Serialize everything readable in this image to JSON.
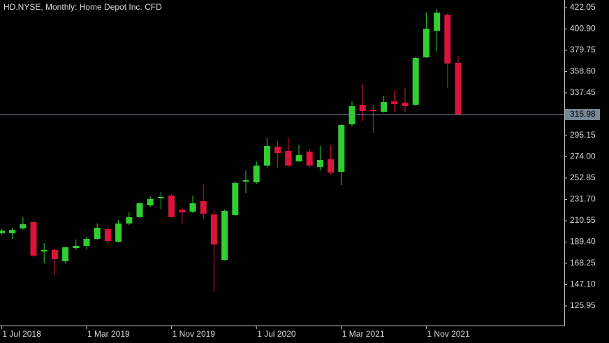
{
  "chart_data": {
    "type": "candlestick",
    "title": "HD.NYSE, Monthly:  Home Depot Inc. CFD",
    "categories": [
      "1 Jul 2018",
      null,
      null,
      null,
      null,
      null,
      null,
      null,
      "1 Mar 2019",
      null,
      null,
      null,
      null,
      null,
      null,
      null,
      "1 Nov 2019",
      null,
      null,
      null,
      null,
      null,
      null,
      null,
      "1 Jul 2020",
      null,
      null,
      null,
      null,
      null,
      null,
      null,
      "1 Mar 2021",
      null,
      null,
      null,
      null,
      null,
      null,
      null,
      "1 Nov 2021",
      null,
      null,
      null
    ],
    "open": [
      198.1,
      198.1,
      202.9,
      209.2,
      180.1,
      181.5,
      170.3,
      183.5,
      185.6,
      192.5,
      202.2,
      189.7,
      207.8,
      214.1,
      225.8,
      232.8,
      235.5,
      221.6,
      219.6,
      230.0,
      216.8,
      171.7,
      216.1,
      249.4,
      248.7,
      265.3,
      284.1,
      279.9,
      269.5,
      279.2,
      264.0,
      271.6,
      259.1,
      306.3,
      325.7,
      320.8,
      318.7,
      329.1,
      327.8,
      325.7,
      372.8,
      399.2,
      415.1,
      367.3
    ],
    "high": [
      202.2,
      203.6,
      214.1,
      210.6,
      188.4,
      182.8,
      184.9,
      191.8,
      194.6,
      207.8,
      204.3,
      211.3,
      219.6,
      229.3,
      234.8,
      239.0,
      236.9,
      224.4,
      235.5,
      246.6,
      221.6,
      221.6,
      250.1,
      259.8,
      269.5,
      293.1,
      289.6,
      293.1,
      286.2,
      282.0,
      284.8,
      285.5,
      307.0,
      329.2,
      345.8,
      325.7,
      334.7,
      340.2,
      342.3,
      373.5,
      417.2,
      420.7,
      416.5,
      374.2
    ],
    "low": [
      196.7,
      192.5,
      201.5,
      174.5,
      168.3,
      157.2,
      168.3,
      181.5,
      182.2,
      191.8,
      187.0,
      189.0,
      206.4,
      213.4,
      224.4,
      222.3,
      214.1,
      207.8,
      218.2,
      212.0,
      139.8,
      171.0,
      215.4,
      238.3,
      247.3,
      263.3,
      263.3,
      264.0,
      268.8,
      263.3,
      260.5,
      256.3,
      245.9,
      304.2,
      309.1,
      297.9,
      318.1,
      318.7,
      318.1,
      324.3,
      372.1,
      379.1,
      342.3,
      315.98
    ],
    "close": [
      200.8,
      201.5,
      207.1,
      175.9,
      181.5,
      172.4,
      184.2,
      185.6,
      192.5,
      203.6,
      190.4,
      207.8,
      214.1,
      227.9,
      232.1,
      234.1,
      214.1,
      218.9,
      227.9,
      217.5,
      187.0,
      220.3,
      248.0,
      250.8,
      265.3,
      284.8,
      277.8,
      265.3,
      275.7,
      265.3,
      270.9,
      258.4,
      305.6,
      324.3,
      319.4,
      319.4,
      328.4,
      326.4,
      324.3,
      372.1,
      401.2,
      417.2,
      366.6,
      315.98
    ],
    "up_color": "#32cd32",
    "down_color": "#dc143c",
    "current_price": 315.98,
    "price_line_color": "#778899",
    "ylim": [
      106.5,
      429.7
    ],
    "yticks": [
      {
        "value": 125.95,
        "label": "125.95"
      },
      {
        "value": 147.1,
        "label": "147.10"
      },
      168.25,
      {
        "value": 189.4,
        "label": "189.40"
      },
      210.55,
      {
        "value": 231.7,
        "label": "231.70"
      },
      252.85,
      {
        "value": 274,
        "label": "274.00"
      },
      295.15,
      337.45,
      {
        "value": 358.6,
        "label": "358.60"
      },
      379.75,
      {
        "value": 400.9,
        "label": "400.90"
      },
      422.05
    ],
    "grid": false
  }
}
